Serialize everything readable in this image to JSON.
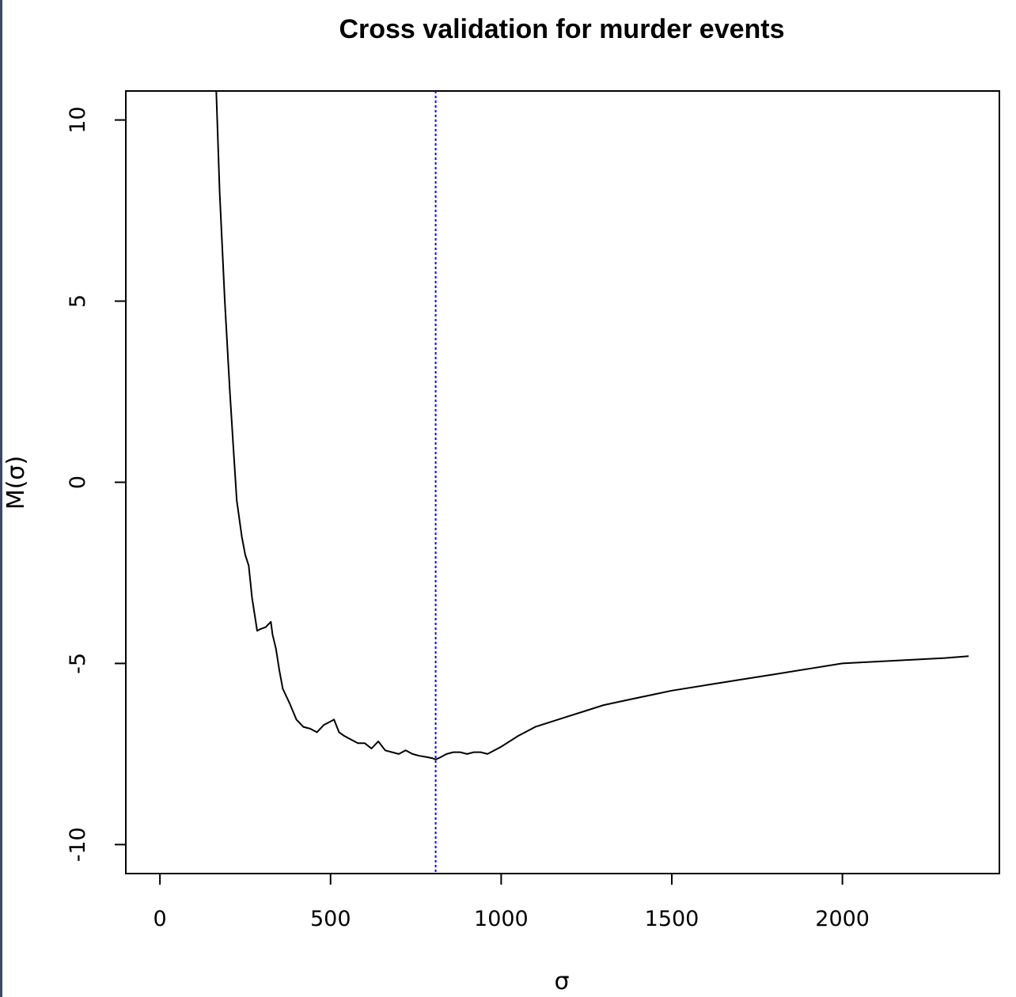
{
  "chart_data": {
    "type": "line",
    "title": "Cross validation for murder events",
    "xlabel": "σ",
    "ylabel": "M(σ)",
    "xlim": [
      -100,
      2460
    ],
    "ylim": [
      -10.8,
      10.8
    ],
    "xticks": [
      0,
      500,
      1000,
      1500,
      2000
    ],
    "yticks": [
      -10,
      -5,
      0,
      5,
      10
    ],
    "grid": false,
    "legend": "none",
    "vline": {
      "x": 808,
      "style": "dotted",
      "color": "#0000ff"
    },
    "series": [
      {
        "color": "#000000",
        "x": [
          165,
          175,
          190,
          205,
          215,
          225,
          240,
          250,
          260,
          270,
          285,
          295,
          310,
          325,
          330,
          340,
          350,
          360,
          380,
          400,
          420,
          440,
          460,
          480,
          500,
          510,
          525,
          540,
          560,
          580,
          600,
          620,
          640,
          660,
          680,
          700,
          720,
          740,
          760,
          780,
          800,
          808,
          820,
          840,
          860,
          880,
          900,
          920,
          940,
          960,
          980,
          1000,
          1050,
          1100,
          1150,
          1200,
          1250,
          1300,
          1350,
          1400,
          1450,
          1500,
          1600,
          1700,
          1800,
          1900,
          2000,
          2100,
          2200,
          2300,
          2370
        ],
        "y": [
          10.8,
          8,
          5,
          2.5,
          1,
          -0.5,
          -1.5,
          -2,
          -2.3,
          -3.2,
          -4.1,
          -4.05,
          -4,
          -3.85,
          -4.2,
          -4.6,
          -5.2,
          -5.7,
          -6.1,
          -6.55,
          -6.75,
          -6.8,
          -6.9,
          -6.7,
          -6.6,
          -6.55,
          -6.9,
          -7.0,
          -7.1,
          -7.2,
          -7.2,
          -7.35,
          -7.15,
          -7.4,
          -7.45,
          -7.5,
          -7.4,
          -7.5,
          -7.55,
          -7.58,
          -7.62,
          -7.65,
          -7.6,
          -7.5,
          -7.45,
          -7.45,
          -7.5,
          -7.45,
          -7.45,
          -7.5,
          -7.4,
          -7.3,
          -7.0,
          -6.75,
          -6.6,
          -6.45,
          -6.3,
          -6.15,
          -6.05,
          -5.95,
          -5.85,
          -5.75,
          -5.6,
          -5.45,
          -5.3,
          -5.15,
          -5.0,
          -4.95,
          -4.9,
          -4.85,
          -4.8
        ]
      }
    ]
  }
}
